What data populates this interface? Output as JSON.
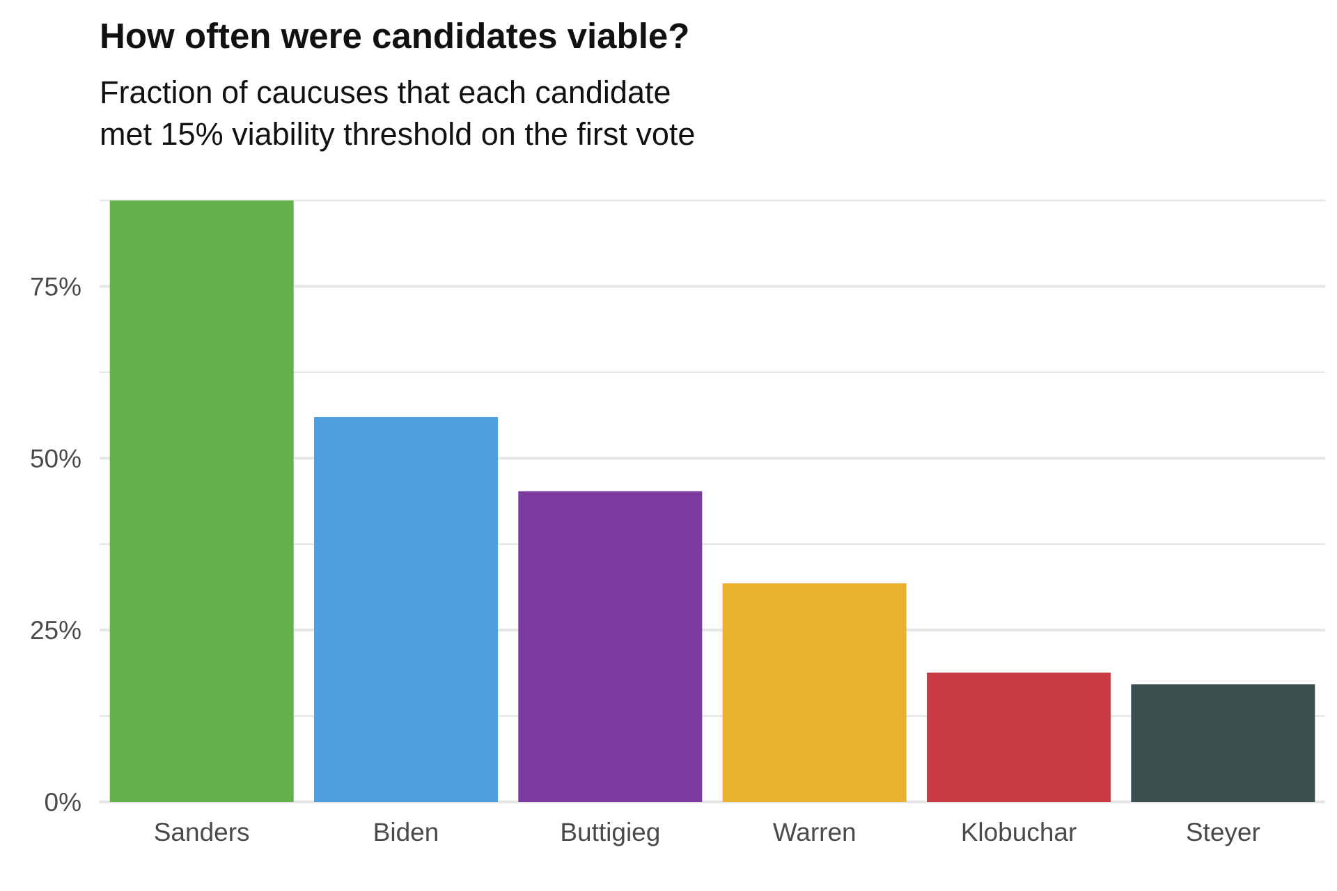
{
  "chart_data": {
    "type": "bar",
    "title": "How often were candidates viable?",
    "subtitle_lines": [
      "Fraction of caucuses that each candidate",
      "met 15% viability threshold on the first vote"
    ],
    "categories": [
      "Sanders",
      "Biden",
      "Buttigieg",
      "Warren",
      "Klobuchar",
      "Steyer"
    ],
    "values": [
      87.5,
      56,
      45.2,
      31.8,
      18.8,
      17.1
    ],
    "colors": [
      "#64b24c",
      "#509fde",
      "#7a3a9e",
      "#e8b12f",
      "#ca3c43",
      "#3e4f4f"
    ],
    "ylim": [
      0,
      87.5
    ],
    "yticks": [
      0,
      25,
      50,
      75
    ],
    "ytick_labels": [
      "0%",
      "25%",
      "50%",
      "75%"
    ],
    "grid": true,
    "grid_color": "#e6e6e6",
    "tick_label_color": "#4a4a4a"
  }
}
